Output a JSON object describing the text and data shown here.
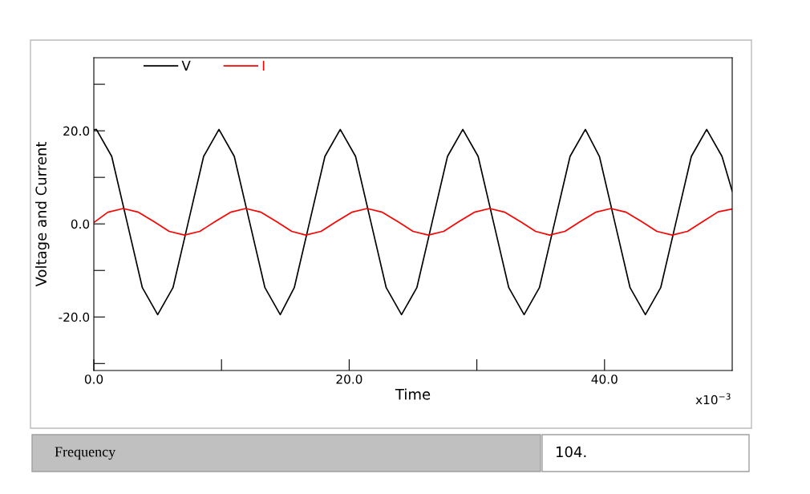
{
  "chart_data": {
    "type": "line",
    "xlabel": "Time",
    "ylabel": "Voltage and Current",
    "xlim": [
      0,
      50
    ],
    "xticks": [
      {
        "value": 0,
        "label": "0.0"
      },
      {
        "value": 10,
        "label": null
      },
      {
        "value": 20,
        "label": "20.0"
      },
      {
        "value": 30,
        "label": null
      },
      {
        "value": 40,
        "label": "40.0"
      }
    ],
    "ylim": [
      -31.5,
      35.7
    ],
    "yticks": [
      {
        "value": -30,
        "label": null
      },
      {
        "value": -20,
        "label": "-20.0"
      },
      {
        "value": -10,
        "label": null
      },
      {
        "value": 0,
        "label": "0.0"
      },
      {
        "value": 10,
        "label": null
      },
      {
        "value": 20,
        "label": "20.0"
      },
      {
        "value": 30,
        "label": null
      }
    ],
    "grid": false,
    "legend": "top left",
    "marker": "none",
    "line_style": "solid",
    "annotations": [
      "x10$^{−3}$",
      "Frequency",
      "104."
    ],
    "series": [
      {
        "name": "V",
        "color": "#000000",
        "x": [
          0,
          0.2,
          1.4,
          2.6,
          3.8,
          5.0,
          6.2,
          7.4,
          8.6,
          9.8,
          11.0,
          12.2,
          13.4,
          14.6,
          15.7,
          16.9,
          18.1,
          19.3,
          20.5,
          21.7,
          22.9,
          24.1,
          25.3,
          26.5,
          27.7,
          28.9,
          30.1,
          31.3,
          32.5,
          33.7,
          34.9,
          36.1,
          37.3,
          38.5,
          39.6,
          40.8,
          42.0,
          43.2,
          44.4,
          45.6,
          46.8,
          48.0,
          49.2,
          50.0
        ],
        "values": [
          20.2,
          20.3,
          14.5,
          0.4,
          -13.7,
          -19.5,
          -13.7,
          0.4,
          14.5,
          20.3,
          14.5,
          0.4,
          -13.7,
          -19.5,
          -13.7,
          0.4,
          14.5,
          20.3,
          14.5,
          0.4,
          -13.7,
          -19.5,
          -13.7,
          0.4,
          14.5,
          20.3,
          14.5,
          0.4,
          -13.7,
          -19.5,
          -13.7,
          0.4,
          14.5,
          20.3,
          14.5,
          0.4,
          -13.7,
          -19.5,
          -13.7,
          0.4,
          14.5,
          20.3,
          14.5,
          7.0
        ]
      },
      {
        "name": "I",
        "color": "#ff0000",
        "x": [
          0,
          1.1,
          2.3,
          3.5,
          4.7,
          5.9,
          7.1,
          8.3,
          9.5,
          10.7,
          11.9,
          13.1,
          14.3,
          15.5,
          16.6,
          17.8,
          19.0,
          20.2,
          21.4,
          22.6,
          23.8,
          25.0,
          26.2,
          27.4,
          28.6,
          29.8,
          31.0,
          32.2,
          33.4,
          34.6,
          35.7,
          36.9,
          38.1,
          39.3,
          40.5,
          41.7,
          42.9,
          44.1,
          45.3,
          46.5,
          47.7,
          48.9,
          50.0
        ],
        "values": [
          0.3,
          2.5,
          3.3,
          2.5,
          0.5,
          -1.6,
          -2.4,
          -1.6,
          0.5,
          2.5,
          3.3,
          2.5,
          0.5,
          -1.6,
          -2.4,
          -1.6,
          0.5,
          2.5,
          3.3,
          2.5,
          0.5,
          -1.6,
          -2.4,
          -1.6,
          0.5,
          2.5,
          3.3,
          2.5,
          0.5,
          -1.6,
          -2.4,
          -1.6,
          0.5,
          2.5,
          3.3,
          2.5,
          0.5,
          -1.6,
          -2.4,
          -1.6,
          0.5,
          2.6,
          3.2
        ]
      }
    ]
  }
}
